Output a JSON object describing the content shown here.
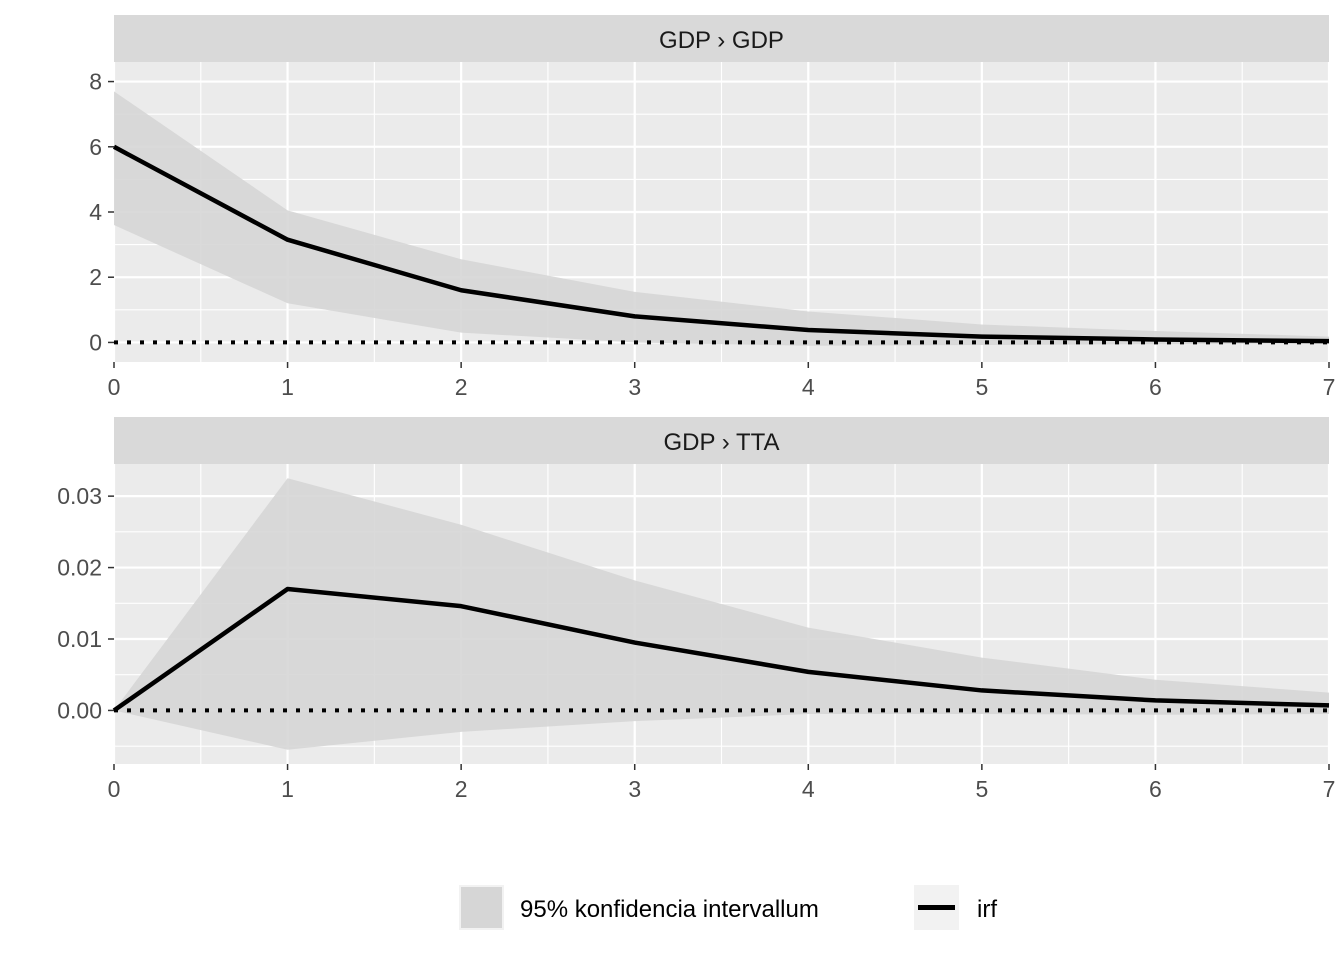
{
  "colors": {
    "panel_background": "#ebebeb",
    "strip_background": "#d9d9d9",
    "grid": "#ffffff",
    "band": "#d6d6d6",
    "irf_line": "#000000",
    "zero_line": "#000000"
  },
  "chart_data": [
    {
      "type": "line",
      "facet_label": "GDP › GDP",
      "x": [
        0,
        1,
        2,
        3,
        4,
        5,
        6,
        7
      ],
      "xlim": [
        0,
        7
      ],
      "x_ticks": [
        "0",
        "1",
        "2",
        "3",
        "4",
        "5",
        "6",
        "7"
      ],
      "ylim": [
        -0.6,
        8.6
      ],
      "y_ticks": [
        "0",
        "2",
        "4",
        "6",
        "8"
      ],
      "grid": true,
      "zero_line": "dotted",
      "series": [
        {
          "name": "irf",
          "values": [
            6.0,
            3.15,
            1.6,
            0.8,
            0.38,
            0.18,
            0.09,
            0.04
          ]
        },
        {
          "name": "95% konfidencia intervallum",
          "lower": [
            3.6,
            1.2,
            0.3,
            0.0,
            -0.1,
            -0.08,
            -0.05,
            -0.03
          ],
          "upper": [
            7.7,
            4.05,
            2.55,
            1.55,
            0.95,
            0.55,
            0.35,
            0.18
          ]
        }
      ]
    },
    {
      "type": "line",
      "facet_label": "GDP › TTA",
      "x": [
        0,
        1,
        2,
        3,
        4,
        5,
        6,
        7
      ],
      "xlim": [
        0,
        7
      ],
      "x_ticks": [
        "0",
        "1",
        "2",
        "3",
        "4",
        "5",
        "6",
        "7"
      ],
      "ylim": [
        -0.0075,
        0.0345
      ],
      "y_ticks": [
        "0.00",
        "0.01",
        "0.02",
        "0.03"
      ],
      "grid": true,
      "zero_line": "dotted",
      "series": [
        {
          "name": "irf",
          "values": [
            0.0,
            0.017,
            0.0146,
            0.0095,
            0.0054,
            0.0028,
            0.0014,
            0.0007
          ]
        },
        {
          "name": "95% konfidencia intervallum",
          "lower": [
            0.0,
            -0.0055,
            -0.003,
            -0.0015,
            -0.0005,
            -0.0005,
            -0.0006,
            -0.0005
          ],
          "upper": [
            0.0,
            0.0325,
            0.026,
            0.0182,
            0.0116,
            0.0074,
            0.0043,
            0.0025
          ]
        }
      ]
    }
  ],
  "legend": {
    "position": "bottom",
    "items": [
      {
        "label": "95% konfidencia intervallum",
        "key": "band"
      },
      {
        "label": "irf",
        "key": "line"
      }
    ]
  }
}
